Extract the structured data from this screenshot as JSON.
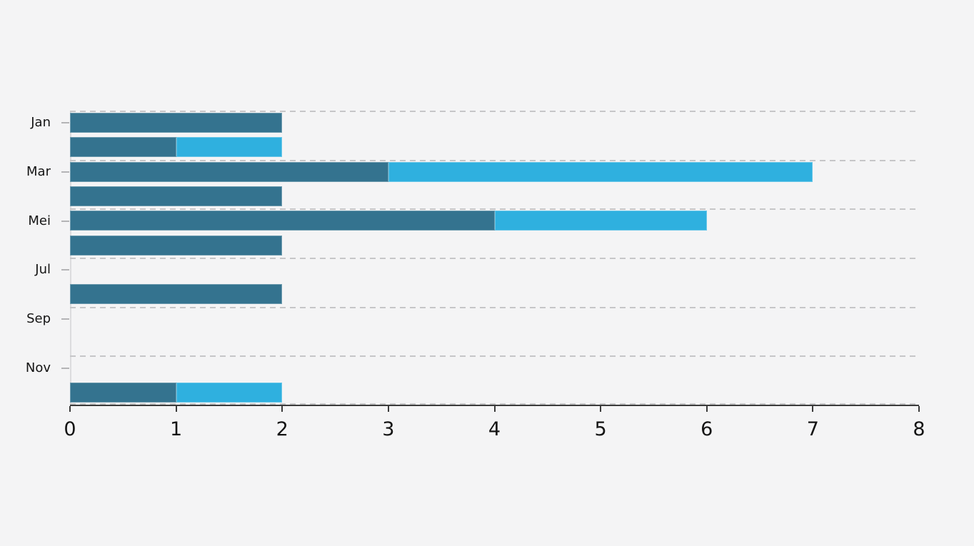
{
  "page": {
    "background_color": "#f4f4f5"
  },
  "chart_data": {
    "type": "bar",
    "orientation": "horizontal",
    "stacked": true,
    "title": "",
    "xlabel": "",
    "ylabel": "",
    "xlim": [
      0,
      8
    ],
    "x_ticks": [
      0,
      1,
      2,
      3,
      4,
      5,
      6,
      7,
      8
    ],
    "grid": "dashed horizontal lines at every second category boundary and at axis",
    "legend": "none",
    "axis_color": "#3b3b3b",
    "gridline_color": "#c6c6c8",
    "series": [
      {
        "name": "dark-teal",
        "color": "#34738f"
      },
      {
        "name": "light-blue",
        "color": "#2fb0df"
      }
    ],
    "rows": [
      {
        "label": "Jan",
        "values": [
          2,
          0
        ]
      },
      {
        "label": "",
        "values": [
          1,
          1
        ]
      },
      {
        "label": "Mar",
        "values": [
          3,
          4
        ]
      },
      {
        "label": "",
        "values": [
          2,
          0
        ]
      },
      {
        "label": "Mei",
        "values": [
          4,
          2
        ]
      },
      {
        "label": "",
        "values": [
          2,
          0
        ]
      },
      {
        "label": "Jul",
        "values": [
          0,
          0
        ]
      },
      {
        "label": "",
        "values": [
          2,
          0
        ]
      },
      {
        "label": "Sep",
        "values": [
          0,
          0
        ]
      },
      {
        "label": "",
        "values": [
          0,
          0
        ]
      },
      {
        "label": "Nov",
        "values": [
          0,
          0
        ]
      },
      {
        "label": "",
        "values": [
          1,
          1
        ]
      }
    ]
  }
}
